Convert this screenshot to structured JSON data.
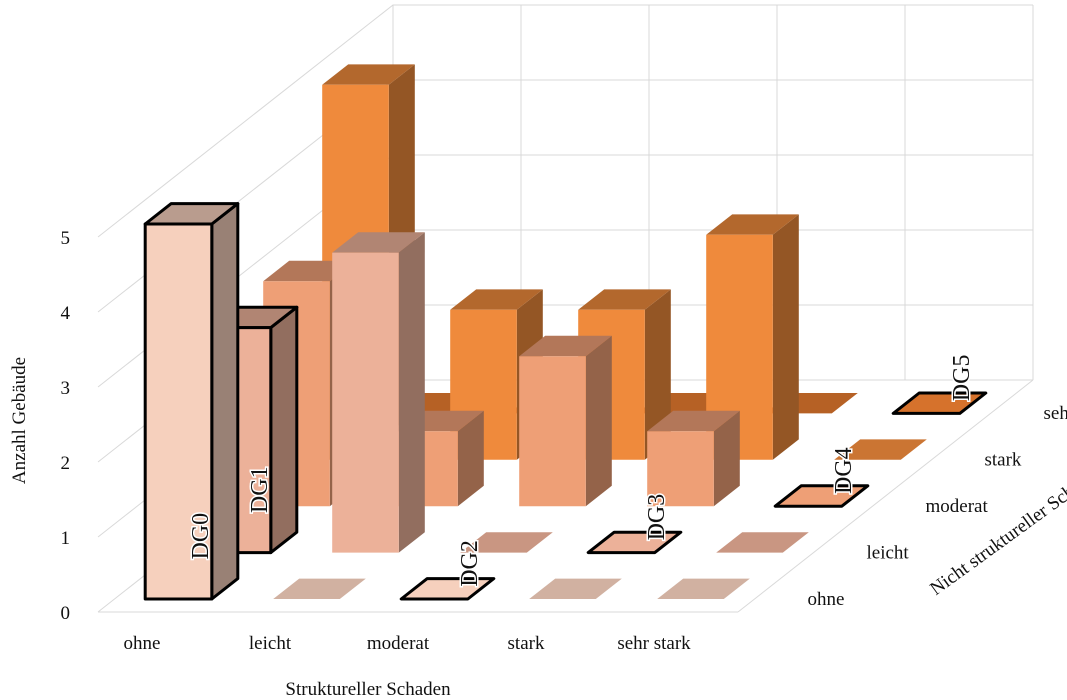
{
  "chart_data": {
    "type": "bar",
    "subtype": "3d-bar",
    "xlabel": "Struktureller Schaden",
    "ylabel": "Anzahl Gebäude",
    "zlabel": "Nicht struktureller Schaden",
    "categories": [
      "ohne",
      "leicht",
      "moderat",
      "stark",
      "sehr stark"
    ],
    "depth_categories": [
      "ohne",
      "leicht",
      "moderat",
      "stark",
      "sehr stark"
    ],
    "yticks": [
      "0",
      "1",
      "2",
      "3",
      "4",
      "5"
    ],
    "ylim": [
      0,
      5
    ],
    "grid": true,
    "series": [
      {
        "depth": "ohne",
        "values": [
          5,
          0,
          0,
          0,
          0
        ]
      },
      {
        "depth": "leicht",
        "values": [
          3,
          4,
          0,
          0,
          0
        ]
      },
      {
        "depth": "moderat",
        "values": [
          3,
          1,
          2,
          1,
          0
        ]
      },
      {
        "depth": "stark",
        "values": [
          5,
          2,
          2,
          3,
          0
        ]
      },
      {
        "depth": "sehr stark",
        "values": [
          0,
          0,
          0,
          0,
          0
        ]
      }
    ],
    "annotations": [
      {
        "text": "DG0",
        "category": "ohne",
        "depth": "ohne",
        "value": 5
      },
      {
        "text": "DG1",
        "category": "ohne",
        "depth": "leicht",
        "value": 3
      },
      {
        "text": "DG2",
        "category": "moderat",
        "depth": "ohne",
        "value": 3
      },
      {
        "text": "DG3",
        "category": "stark",
        "depth": "leicht",
        "value": 1
      },
      {
        "text": "DG4",
        "category": "sehr stark",
        "depth": "moderat",
        "value": 0
      },
      {
        "text": "DG5",
        "category": "sehr stark",
        "depth": "sehr stark",
        "value": 0
      }
    ],
    "colors": {
      "ohne": "#f6d0bd",
      "leicht": "#ecb199",
      "moderat": "#ee9f76",
      "stark": "#ef8a3c",
      "sehr stark": "#d6722c"
    }
  }
}
